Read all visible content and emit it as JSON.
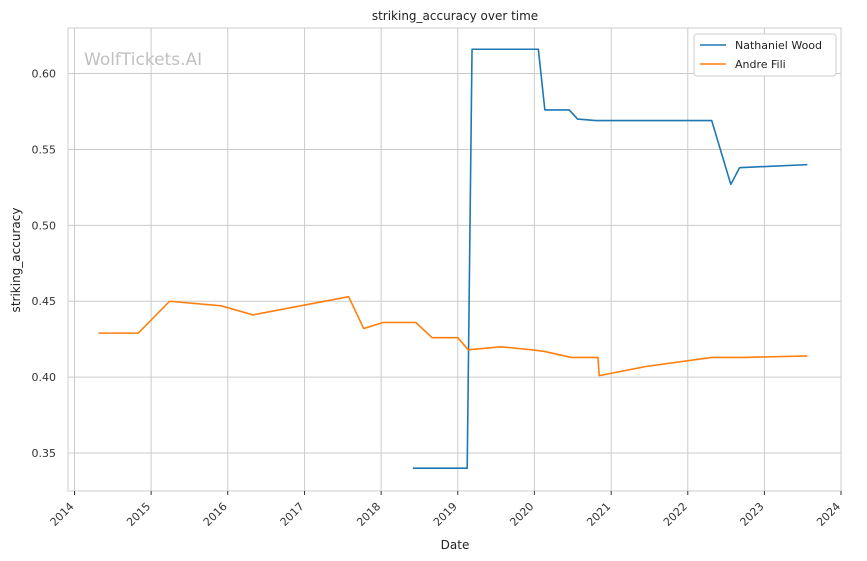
{
  "chart_data": {
    "type": "line",
    "title": "striking_accuracy over time",
    "xlabel": "Date",
    "ylabel": "striking_accuracy",
    "watermark": "WolfTickets.AI",
    "xlim": [
      "2013-12-01",
      "2024-01-01"
    ],
    "ylim": [
      0.325,
      0.63
    ],
    "x_ticks": [
      "2014",
      "2015",
      "2016",
      "2017",
      "2018",
      "2019",
      "2020",
      "2021",
      "2022",
      "2023",
      "2024"
    ],
    "y_ticks": [
      "0.35",
      "0.40",
      "0.45",
      "0.50",
      "0.55",
      "0.60"
    ],
    "grid": true,
    "legend_position": "top-right",
    "series": [
      {
        "name": "Nathaniel Wood",
        "color": "#1f77b4",
        "points": [
          [
            "2018-06-01",
            0.34
          ],
          [
            "2019-02-15",
            0.34
          ],
          [
            "2019-03-10",
            0.616
          ],
          [
            "2020-01-20",
            0.616
          ],
          [
            "2020-02-20",
            0.576
          ],
          [
            "2020-06-15",
            0.576
          ],
          [
            "2020-07-25",
            0.57
          ],
          [
            "2020-10-20",
            0.569
          ],
          [
            "2022-04-25",
            0.569
          ],
          [
            "2022-07-25",
            0.527
          ],
          [
            "2022-09-05",
            0.538
          ],
          [
            "2023-07-25",
            0.54
          ]
        ]
      },
      {
        "name": "Andre Fili",
        "color": "#ff7f0e",
        "points": [
          [
            "2014-04-25",
            0.429
          ],
          [
            "2014-11-01",
            0.429
          ],
          [
            "2015-03-30",
            0.45
          ],
          [
            "2015-12-01",
            0.447
          ],
          [
            "2016-04-30",
            0.441
          ],
          [
            "2017-01-20",
            0.448
          ],
          [
            "2017-07-30",
            0.453
          ],
          [
            "2017-10-10",
            0.432
          ],
          [
            "2018-01-10",
            0.436
          ],
          [
            "2018-06-15",
            0.436
          ],
          [
            "2018-09-01",
            0.426
          ],
          [
            "2019-01-01",
            0.426
          ],
          [
            "2019-02-20",
            0.418
          ],
          [
            "2019-07-25",
            0.42
          ],
          [
            "2019-12-20",
            0.418
          ],
          [
            "2020-02-15",
            0.417
          ],
          [
            "2020-06-25",
            0.413
          ],
          [
            "2020-10-30",
            0.413
          ],
          [
            "2020-11-05",
            0.401
          ],
          [
            "2021-06-15",
            0.407
          ],
          [
            "2022-04-25",
            0.413
          ],
          [
            "2022-10-01",
            0.413
          ],
          [
            "2023-07-25",
            0.414
          ]
        ]
      }
    ]
  }
}
